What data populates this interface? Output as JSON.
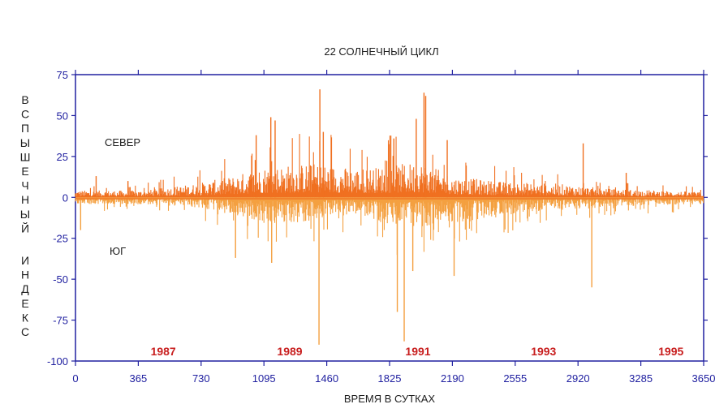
{
  "chart_data": {
    "type": "bar",
    "title": "22 СОЛНЕЧНЫЙ ЦИКЛ",
    "xlabel": "ВРЕМЯ В СУТКАХ",
    "ylabel": "ВСПЫШЕЧНЫЙ ИНДЕКС",
    "xlim": [
      0,
      3650
    ],
    "ylim": [
      -100,
      75
    ],
    "xticks": [
      0,
      365,
      730,
      1095,
      1460,
      1825,
      2190,
      2555,
      2920,
      3285,
      3650
    ],
    "yticks": [
      75,
      50,
      25,
      0,
      -25,
      -50,
      -75,
      -100
    ],
    "colors": {
      "north": "#f07020",
      "south": "#f4a040",
      "axis": "#2020a0",
      "year": "#c81e1e"
    },
    "year_labels": [
      {
        "label": "1987",
        "x": 510
      },
      {
        "label": "1989",
        "x": 1245
      },
      {
        "label": "1991",
        "x": 1990
      },
      {
        "label": "1993",
        "x": 2720
      },
      {
        "label": "1995",
        "x": 3460
      }
    ],
    "series": [
      {
        "name": "СЕВЕР",
        "sign": 1,
        "envelope_x": [
          0,
          400,
          700,
          900,
          1100,
          1400,
          1600,
          1800,
          2000,
          2200,
          2500,
          2800,
          3100,
          3400,
          3650
        ],
        "envelope_y": [
          4,
          4,
          8,
          12,
          18,
          20,
          17,
          18,
          21,
          12,
          9,
          8,
          5,
          4,
          3
        ],
        "peaks": [
          {
            "x": 120,
            "y": 13
          },
          {
            "x": 305,
            "y": 10
          },
          {
            "x": 1050,
            "y": 38
          },
          {
            "x": 1135,
            "y": 49
          },
          {
            "x": 1160,
            "y": 47
          },
          {
            "x": 1420,
            "y": 66
          },
          {
            "x": 1440,
            "y": 40
          },
          {
            "x": 1850,
            "y": 36
          },
          {
            "x": 1980,
            "y": 48
          },
          {
            "x": 2025,
            "y": 64
          },
          {
            "x": 2035,
            "y": 62
          },
          {
            "x": 2160,
            "y": 35
          },
          {
            "x": 2950,
            "y": 33
          },
          {
            "x": 3200,
            "y": 15
          }
        ]
      },
      {
        "name": "ЮГ",
        "sign": -1,
        "envelope_x": [
          0,
          400,
          700,
          900,
          1100,
          1300,
          1500,
          1700,
          1850,
          2000,
          2300,
          2600,
          2900,
          3200,
          3650
        ],
        "envelope_y": [
          4,
          4,
          6,
          10,
          15,
          15,
          10,
          12,
          18,
          17,
          14,
          9,
          7,
          5,
          4
        ],
        "peaks": [
          {
            "x": 30,
            "y": 20
          },
          {
            "x": 930,
            "y": 37
          },
          {
            "x": 1140,
            "y": 40
          },
          {
            "x": 1415,
            "y": 90
          },
          {
            "x": 1870,
            "y": 70
          },
          {
            "x": 1910,
            "y": 88
          },
          {
            "x": 1960,
            "y": 45
          },
          {
            "x": 2200,
            "y": 48
          },
          {
            "x": 3000,
            "y": 55
          }
        ]
      }
    ]
  }
}
